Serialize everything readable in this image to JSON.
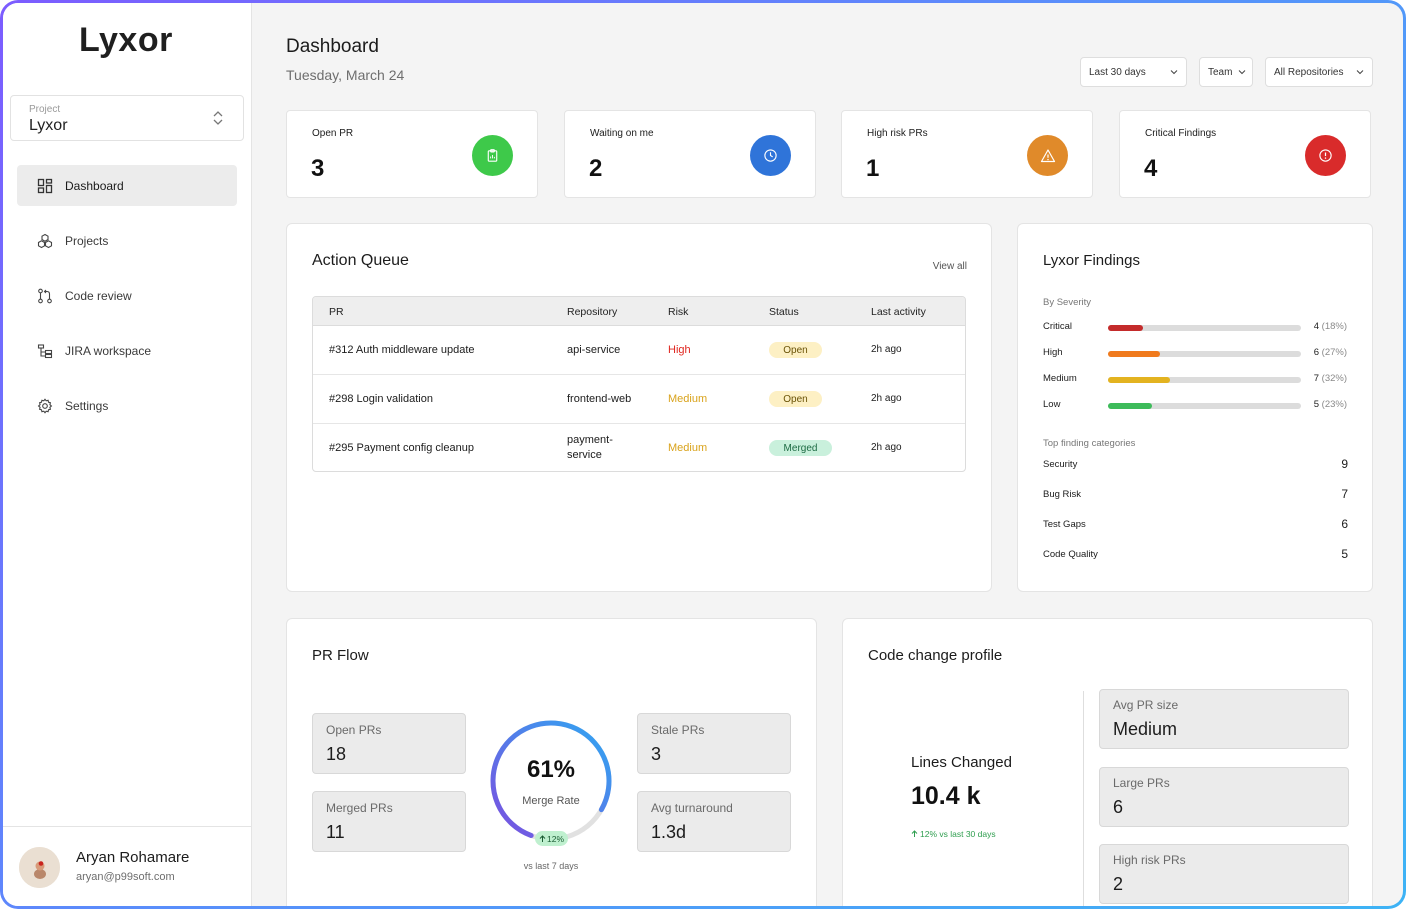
{
  "app": {
    "name": "Lyxor"
  },
  "project_select": {
    "label": "Project",
    "value": "Lyxor"
  },
  "nav": [
    {
      "label": "Dashboard",
      "icon": "dashboard-icon",
      "active": true
    },
    {
      "label": "Projects",
      "icon": "projects-icon",
      "active": false
    },
    {
      "label": "Code review",
      "icon": "code-review-icon",
      "active": false
    },
    {
      "label": "JIRA workspace",
      "icon": "jira-icon",
      "active": false
    },
    {
      "label": "Settings",
      "icon": "gear-icon",
      "active": false
    }
  ],
  "user": {
    "name": "Aryan Rohamare",
    "email": "aryan@p99soft.com"
  },
  "header": {
    "title": "Dashboard",
    "date": "Tuesday, March 24",
    "filters": {
      "range": "Last 30 days",
      "team": "Team",
      "repos": "All Repositories"
    }
  },
  "stats": [
    {
      "label": "Open PR",
      "value": "3",
      "color": "#3ec94a",
      "icon": "clipboard-icon"
    },
    {
      "label": "Waiting on me",
      "value": "2",
      "color": "#2f74d9",
      "icon": "clock-icon"
    },
    {
      "label": "High risk PRs",
      "value": "1",
      "color": "#e08a2a",
      "icon": "warning-icon"
    },
    {
      "label": "Critical Findings",
      "value": "4",
      "color": "#d92b2b",
      "icon": "alert-circle-icon"
    }
  ],
  "action_queue": {
    "title": "Action Queue",
    "view_all": "View all",
    "columns": {
      "pr": "PR",
      "repo": "Repository",
      "risk": "Risk",
      "status": "Status",
      "activity": "Last activity"
    },
    "rows": [
      {
        "pr": "#312 Auth middleware update",
        "repo": "api-service",
        "risk": "High",
        "status": "Open",
        "activity": "2h ago"
      },
      {
        "pr": "#298 Login validation",
        "repo": "frontend-web",
        "risk": "Medium",
        "status": "Open",
        "activity": "2h ago"
      },
      {
        "pr": "#295 Payment config cleanup",
        "repo": "payment-\nservice",
        "risk": "Medium",
        "status": "Merged",
        "activity": "2h ago"
      }
    ]
  },
  "findings": {
    "title": "Lyxor Findings",
    "severity_label": "By Severity",
    "severity": [
      {
        "name": "Critical",
        "count": "4",
        "pct": "(18%)",
        "fraction": 0.18,
        "color": "#c42b2b"
      },
      {
        "name": "High",
        "count": "6",
        "pct": "(27%)",
        "fraction": 0.27,
        "color": "#f07a1d"
      },
      {
        "name": "Medium",
        "count": "7",
        "pct": "(32%)",
        "fraction": 0.32,
        "color": "#e3b320"
      },
      {
        "name": "Low",
        "count": "5",
        "pct": "(23%)",
        "fraction": 0.23,
        "color": "#3dbb5a"
      }
    ],
    "categories_label": "Top finding categories",
    "categories": [
      {
        "name": "Security",
        "count": "9"
      },
      {
        "name": "Bug Risk",
        "count": "7"
      },
      {
        "name": "Test Gaps",
        "count": "6"
      },
      {
        "name": "Code Quality",
        "count": "5"
      }
    ]
  },
  "pr_flow": {
    "title": "PR Flow",
    "open": {
      "label": "Open PRs",
      "value": "18"
    },
    "merged": {
      "label": "Merged PRs",
      "value": "11"
    },
    "stale": {
      "label": "Stale PRs",
      "value": "3"
    },
    "turnaround": {
      "label": "Avg turnaround",
      "value": "1.3d"
    },
    "merge_rate": {
      "value": "61%",
      "fraction": 0.61,
      "label": "Merge Rate",
      "delta": "12%",
      "caption": "vs last 7 days"
    }
  },
  "code_change": {
    "title": "Code change profile",
    "lines_label": "Lines Changed",
    "lines_value": "10.4 k",
    "lines_delta": "12% vs last 30 days",
    "avg_size": {
      "label": "Avg PR size",
      "value": "Medium"
    },
    "large_prs": {
      "label": "Large PRs",
      "value": "6"
    },
    "high_risk": {
      "label": "High risk PRs",
      "value": "2"
    }
  }
}
